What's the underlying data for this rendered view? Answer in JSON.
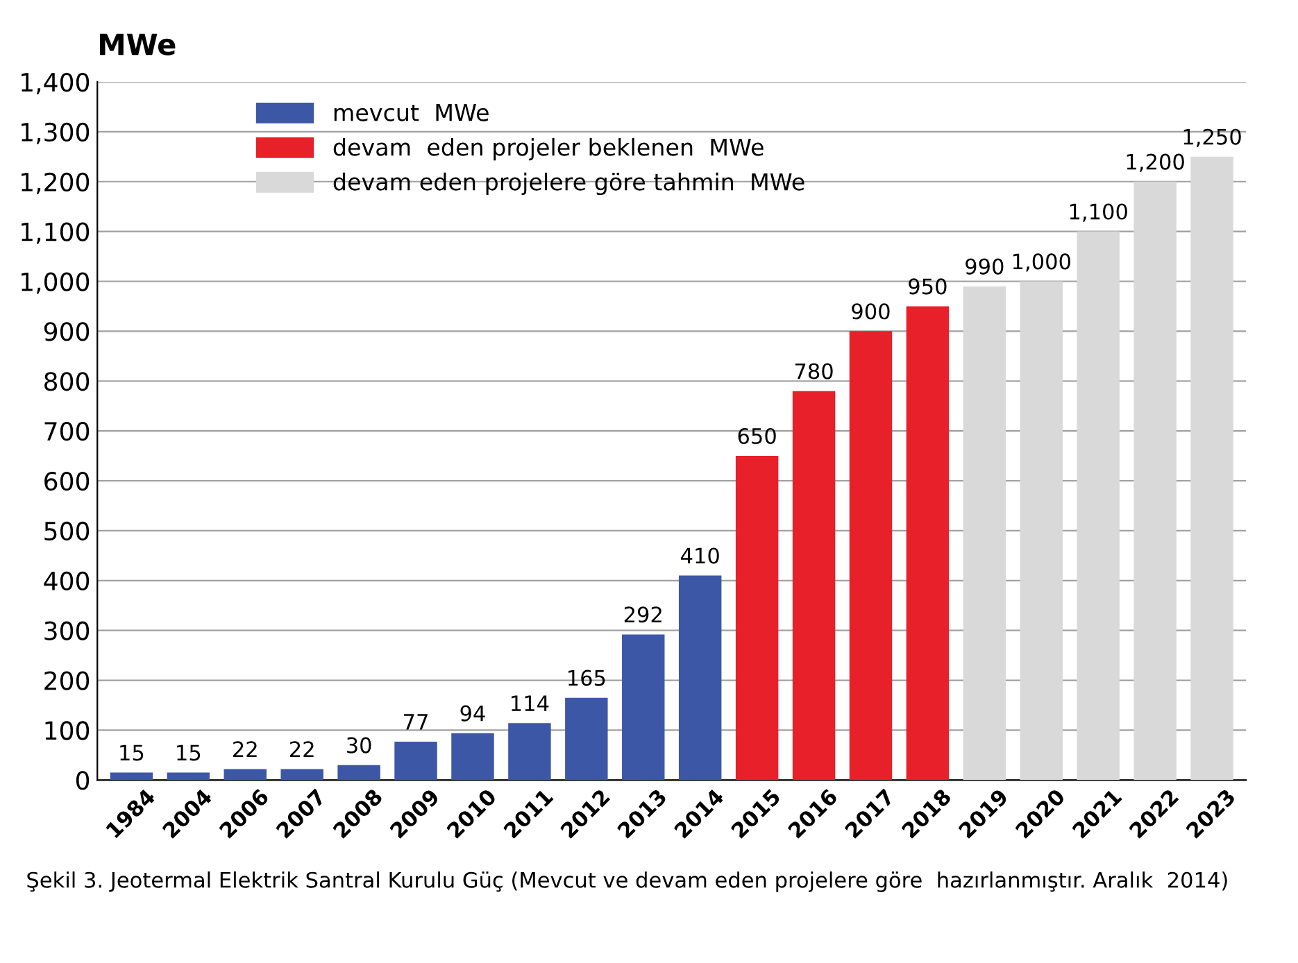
{
  "chart_data": {
    "type": "bar",
    "ylabel": "MWe",
    "categories": [
      "1984",
      "2004",
      "2006",
      "2007",
      "2008",
      "2009",
      "2010",
      "2011",
      "2012",
      "2013",
      "2014",
      "2015",
      "2016",
      "2017",
      "2018",
      "2019",
      "2020",
      "2021",
      "2022",
      "2023"
    ],
    "series": [
      {
        "name": "mevcut  MWe",
        "color": "#3d57a7",
        "values": [
          15,
          15,
          22,
          22,
          30,
          77,
          94,
          114,
          165,
          292,
          410,
          null,
          null,
          null,
          null,
          null,
          null,
          null,
          null,
          null
        ],
        "value_labels": [
          "15",
          "15",
          "22",
          "22",
          "30",
          "77",
          "94",
          "114",
          "165",
          "292",
          "410",
          null,
          null,
          null,
          null,
          null,
          null,
          null,
          null,
          null
        ]
      },
      {
        "name": "devam  eden projeler beklenen  MWe",
        "color": "#e8202a",
        "values": [
          null,
          null,
          null,
          null,
          null,
          null,
          null,
          null,
          null,
          null,
          null,
          650,
          780,
          900,
          950,
          null,
          null,
          null,
          null,
          null
        ],
        "value_labels": [
          null,
          null,
          null,
          null,
          null,
          null,
          null,
          null,
          null,
          null,
          null,
          "650",
          "780",
          "900",
          "950",
          null,
          null,
          null,
          null,
          null
        ]
      },
      {
        "name": "devam eden projelere göre tahmin  MWe",
        "color": "#d9d9d9",
        "values": [
          null,
          null,
          null,
          null,
          null,
          null,
          null,
          null,
          null,
          null,
          null,
          null,
          null,
          null,
          null,
          990,
          1000,
          1100,
          1200,
          1250
        ],
        "value_labels": [
          null,
          null,
          null,
          null,
          null,
          null,
          null,
          null,
          null,
          null,
          null,
          null,
          null,
          null,
          null,
          "990",
          "1,000",
          "1,100",
          "1,200",
          "1,250"
        ]
      }
    ],
    "ylim": [
      0,
      1400
    ],
    "yticks": [
      0,
      100,
      200,
      300,
      400,
      500,
      600,
      700,
      800,
      900,
      {
        "value": 1000,
        "label": "1,000"
      },
      {
        "value": 1100,
        "label": "1,100"
      },
      {
        "value": 1200,
        "label": "1,200"
      },
      {
        "value": 1300,
        "label": "1,300"
      },
      {
        "value": 1400,
        "label": "1,400"
      }
    ],
    "grid": "y",
    "legend": "top left",
    "annotations": [
      "Şekil 3. Jeotermal Elektrik Santral Kurulu Güç (Mevcut ve devam eden projelere göre  hazırlanmıştır. Aralık  2014)"
    ]
  }
}
